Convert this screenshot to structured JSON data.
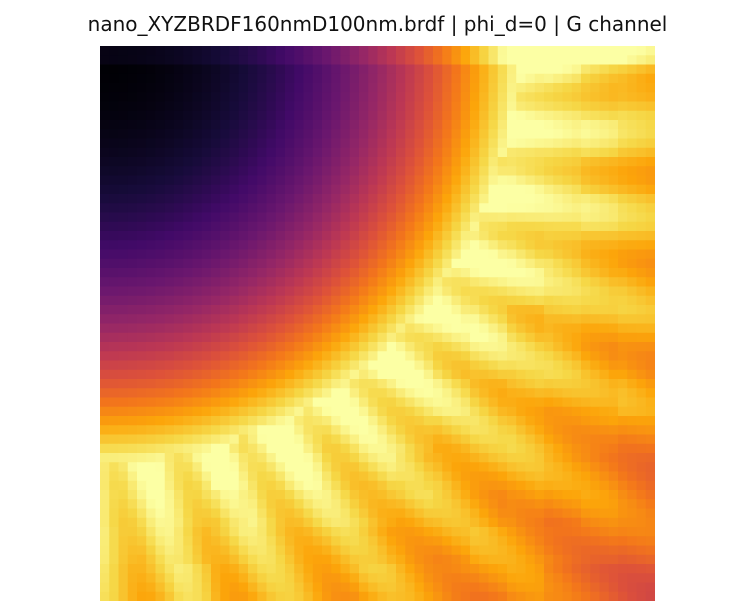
{
  "chart_data": {
    "type": "heatmap",
    "title": "nano_XYZBRDF160nmD100nm.brdf | phi_d=0 | G channel",
    "colormap": "inferno",
    "axes_visible": false,
    "grid": false,
    "legend": "none",
    "value_range": [
      0,
      1
    ]
  }
}
